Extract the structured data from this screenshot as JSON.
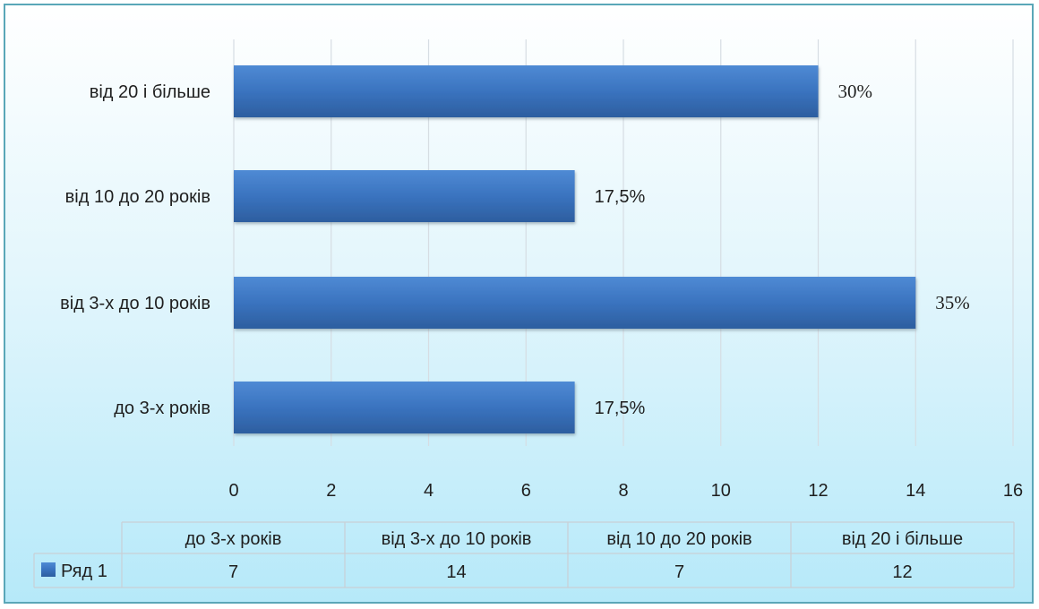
{
  "chart_data": {
    "type": "bar",
    "orientation": "horizontal",
    "categories": [
      "до 3-х років",
      "від 3-х до 10 років",
      "від 10 до 20 років",
      "від 20 і більше"
    ],
    "series": [
      {
        "name": "Ряд 1",
        "values": [
          7,
          14,
          7,
          12
        ]
      }
    ],
    "data_labels": [
      "17,5%",
      "35%",
      "17,5%",
      "30%"
    ],
    "xticks": [
      "0",
      "2",
      "4",
      "6",
      "8",
      "10",
      "12",
      "14",
      "16"
    ],
    "xlim": [
      0,
      16
    ],
    "grid": true,
    "data_table": {
      "headers": [
        "до 3-х років",
        "від 3-х до 10 років",
        "від 10 до 20 років",
        "від 20 і більше"
      ],
      "row_label": "Ряд 1",
      "row_values": [
        "7",
        "14",
        "7",
        "12"
      ]
    },
    "colors": {
      "bar": "#3a73bf",
      "bar_light": "#4f8ad4",
      "bar_dark": "#2d5e9f"
    }
  }
}
